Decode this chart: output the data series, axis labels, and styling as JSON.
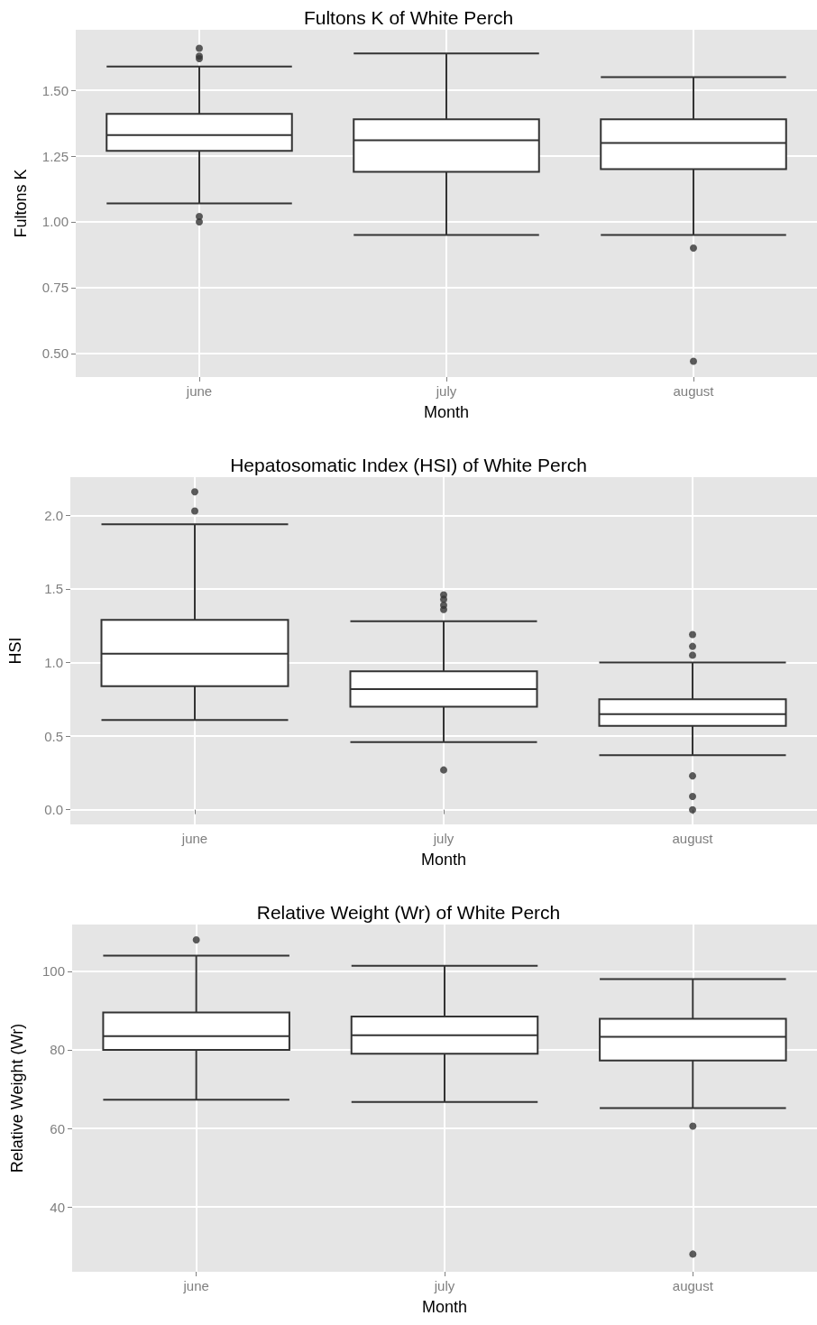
{
  "chart_data": [
    {
      "type": "box",
      "title": "Fultons K of White Perch",
      "xlabel": "Month",
      "ylabel": "Fultons K",
      "categories": [
        "june",
        "july",
        "august"
      ],
      "color": "#333333",
      "grid": true,
      "ylim": [
        0.41,
        1.73
      ],
      "yticks": [
        {
          "value": 0.5,
          "label": "0.50"
        },
        {
          "value": 0.75,
          "label": "0.75"
        },
        {
          "value": 1,
          "label": "1.00"
        },
        {
          "value": 1.25,
          "label": "1.25"
        },
        {
          "value": 1.5,
          "label": "1.50"
        }
      ],
      "boxes": [
        {
          "low": 1.07,
          "q1": 1.27,
          "median": 1.33,
          "q3": 1.41,
          "high": 1.59,
          "outliers": [
            1.66,
            1.63,
            1.62,
            1.02,
            1.0
          ]
        },
        {
          "low": 0.95,
          "q1": 1.19,
          "median": 1.31,
          "q3": 1.39,
          "high": 1.64
        },
        {
          "low": 0.95,
          "q1": 1.2,
          "median": 1.3,
          "q3": 1.39,
          "high": 1.55,
          "outliers": [
            0.9,
            0.47
          ]
        }
      ]
    },
    {
      "type": "box",
      "title": "Hepatosomatic Index (HSI) of White Perch",
      "xlabel": "Month",
      "ylabel": "HSI",
      "categories": [
        "june",
        "july",
        "august"
      ],
      "color": "#333333",
      "grid": true,
      "ylim": [
        -0.1,
        2.26
      ],
      "yticks": [
        {
          "value": 0,
          "label": "0.0"
        },
        {
          "value": 0.5,
          "label": "0.5"
        },
        {
          "value": 1,
          "label": "1.0"
        },
        {
          "value": 1.5,
          "label": "1.5"
        },
        {
          "value": 2,
          "label": "2.0"
        }
      ],
      "boxes": [
        {
          "low": 0.61,
          "q1": 0.84,
          "median": 1.06,
          "q3": 1.29,
          "high": 1.94,
          "outliers": [
            2.16,
            2.03
          ]
        },
        {
          "low": 0.46,
          "q1": 0.7,
          "median": 0.82,
          "q3": 0.94,
          "high": 1.28,
          "outliers": [
            1.46,
            1.43,
            1.39,
            1.36,
            0.27
          ]
        },
        {
          "low": 0.37,
          "q1": 0.57,
          "median": 0.65,
          "q3": 0.75,
          "high": 1.0,
          "outliers": [
            1.19,
            1.11,
            1.05,
            0.23,
            0.09,
            0.0
          ]
        }
      ]
    },
    {
      "type": "box",
      "title": "Relative Weight (Wr) of White Perch",
      "xlabel": "Month",
      "ylabel": "Relative Weight (Wr)",
      "categories": [
        "june",
        "july",
        "august"
      ],
      "color": "#333333",
      "grid": true,
      "ylim": [
        23.5,
        111.9
      ],
      "yticks": [
        40,
        60,
        80,
        100
      ],
      "boxes": [
        {
          "low": 67.3,
          "q1": 80,
          "median": 83.5,
          "q3": 89.5,
          "high": 104,
          "outliers": [
            108
          ]
        },
        {
          "low": 66.7,
          "q1": 79,
          "median": 83.7,
          "q3": 88.5,
          "high": 101.4
        },
        {
          "low": 65.2,
          "q1": 77.3,
          "median": 83.3,
          "q3": 87.9,
          "high": 98,
          "outliers": [
            60.6,
            28
          ]
        }
      ]
    }
  ]
}
